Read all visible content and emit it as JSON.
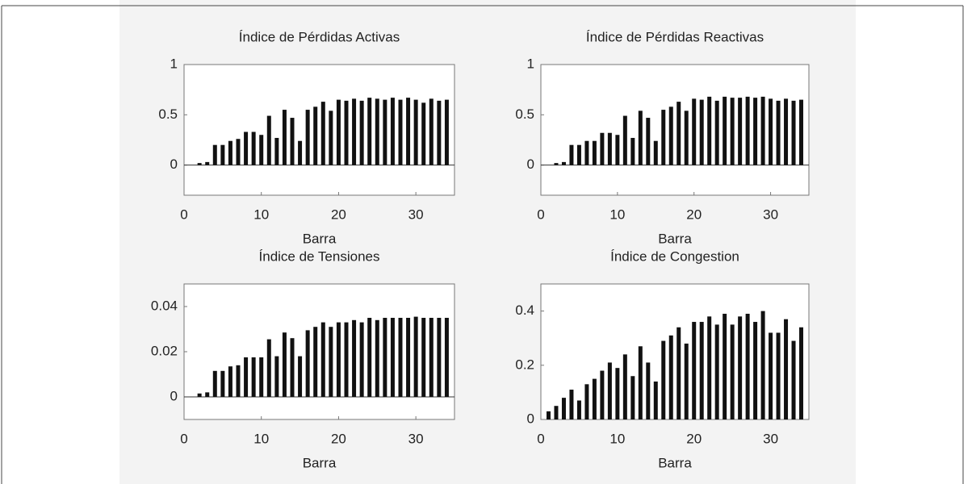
{
  "chart_data": [
    {
      "type": "bar",
      "title": "Índice de Pérdidas Activas",
      "xlabel": "Barra",
      "color": "#111111",
      "x": [
        1,
        2,
        3,
        4,
        5,
        6,
        7,
        8,
        9,
        10,
        11,
        12,
        13,
        14,
        15,
        16,
        17,
        18,
        19,
        20,
        21,
        22,
        23,
        24,
        25,
        26,
        27,
        28,
        29,
        30,
        31,
        32,
        33,
        34
      ],
      "values": [
        0,
        0.02,
        0.03,
        0.2,
        0.2,
        0.24,
        0.26,
        0.33,
        0.33,
        0.3,
        0.49,
        0.27,
        0.55,
        0.47,
        0.24,
        0.55,
        0.58,
        0.63,
        0.54,
        0.65,
        0.64,
        0.66,
        0.64,
        0.67,
        0.66,
        0.65,
        0.67,
        0.65,
        0.67,
        0.65,
        0.62,
        0.66,
        0.64,
        0.65
      ],
      "xlim": [
        0,
        35
      ],
      "xticks": [
        0,
        10,
        20,
        30
      ],
      "ylim": [
        -0.3,
        1
      ],
      "yticks": [
        0,
        0.5,
        1
      ]
    },
    {
      "type": "bar",
      "title": "Índice de Pérdidas Reactivas",
      "xlabel": "Barra",
      "color": "#111111",
      "x": [
        1,
        2,
        3,
        4,
        5,
        6,
        7,
        8,
        9,
        10,
        11,
        12,
        13,
        14,
        15,
        16,
        17,
        18,
        19,
        20,
        21,
        22,
        23,
        24,
        25,
        26,
        27,
        28,
        29,
        30,
        31,
        32,
        33,
        34
      ],
      "values": [
        0,
        0.02,
        0.03,
        0.2,
        0.2,
        0.24,
        0.24,
        0.32,
        0.32,
        0.3,
        0.49,
        0.27,
        0.54,
        0.47,
        0.24,
        0.55,
        0.58,
        0.63,
        0.54,
        0.66,
        0.65,
        0.68,
        0.64,
        0.68,
        0.67,
        0.67,
        0.68,
        0.67,
        0.68,
        0.66,
        0.64,
        0.66,
        0.64,
        0.65
      ],
      "xlim": [
        0,
        35
      ],
      "xticks": [
        0,
        10,
        20,
        30
      ],
      "ylim": [
        -0.3,
        1
      ],
      "yticks": [
        0,
        0.5,
        1
      ]
    },
    {
      "type": "bar",
      "title": "Índice de Tensiones",
      "xlabel": "Barra",
      "color": "#111111",
      "x": [
        1,
        2,
        3,
        4,
        5,
        6,
        7,
        8,
        9,
        10,
        11,
        12,
        13,
        14,
        15,
        16,
        17,
        18,
        19,
        20,
        21,
        22,
        23,
        24,
        25,
        26,
        27,
        28,
        29,
        30,
        31,
        32,
        33,
        34
      ],
      "values": [
        0,
        0.0015,
        0.002,
        0.0115,
        0.0115,
        0.0135,
        0.014,
        0.0175,
        0.0175,
        0.0175,
        0.0255,
        0.018,
        0.0285,
        0.026,
        0.018,
        0.0295,
        0.031,
        0.033,
        0.031,
        0.033,
        0.033,
        0.034,
        0.033,
        0.035,
        0.034,
        0.035,
        0.035,
        0.035,
        0.035,
        0.0355,
        0.035,
        0.035,
        0.035,
        0.035
      ],
      "xlim": [
        0,
        35
      ],
      "xticks": [
        0,
        10,
        20,
        30
      ],
      "ylim": [
        -0.01,
        0.05
      ],
      "yticks": [
        0,
        0.02,
        0.04
      ]
    },
    {
      "type": "bar",
      "title": "Índice de Congestion",
      "xlabel": "Barra",
      "color": "#111111",
      "x": [
        1,
        2,
        3,
        4,
        5,
        6,
        7,
        8,
        9,
        10,
        11,
        12,
        13,
        14,
        15,
        16,
        17,
        18,
        19,
        20,
        21,
        22,
        23,
        24,
        25,
        26,
        27,
        28,
        29,
        30,
        31,
        32,
        33,
        34
      ],
      "values": [
        0.03,
        0.05,
        0.08,
        0.11,
        0.07,
        0.13,
        0.15,
        0.18,
        0.21,
        0.19,
        0.24,
        0.16,
        0.27,
        0.21,
        0.14,
        0.29,
        0.31,
        0.34,
        0.28,
        0.36,
        0.36,
        0.38,
        0.35,
        0.39,
        0.35,
        0.38,
        0.39,
        0.36,
        0.4,
        0.32,
        0.32,
        0.37,
        0.29,
        0.34
      ],
      "xlim": [
        0,
        35
      ],
      "xticks": [
        0,
        10,
        20,
        30
      ],
      "ylim": [
        0,
        0.5
      ],
      "yticks": [
        0,
        0.2,
        0.4
      ]
    }
  ]
}
